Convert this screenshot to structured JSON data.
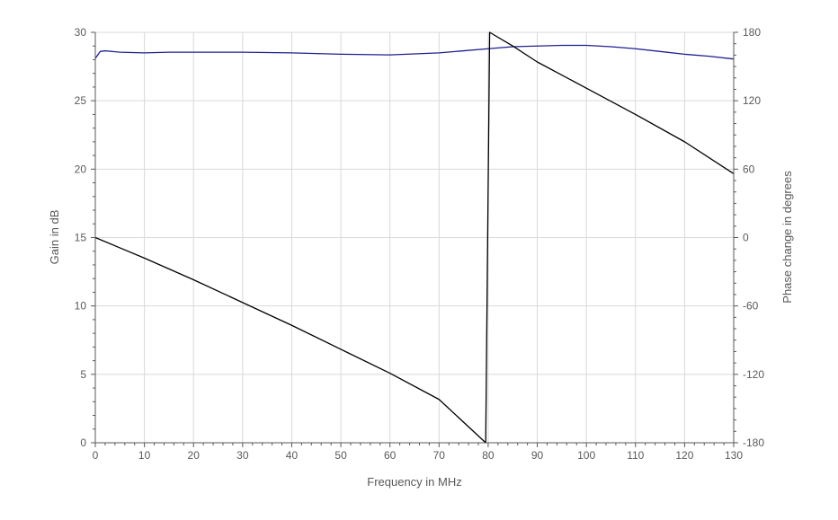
{
  "chart_data": {
    "type": "line",
    "title": "",
    "xlabel": "Frequency in MHz",
    "ylabel": "Gain in dB",
    "y2label": "Phase change in degrees",
    "xlim": [
      0,
      130
    ],
    "ylim": [
      0,
      30
    ],
    "y2lim": [
      -180,
      180
    ],
    "xticks": [
      0,
      10,
      20,
      30,
      40,
      50,
      60,
      70,
      80,
      90,
      100,
      110,
      120,
      130
    ],
    "yticks": [
      0,
      5,
      10,
      15,
      20,
      25,
      30
    ],
    "y2ticks": [
      -180,
      -120,
      -60,
      0,
      60,
      120,
      180
    ],
    "grid": true,
    "legend": "none",
    "colors": {
      "gain": "#1f1f8f",
      "phase": "#000000",
      "grid": "#d9d9d9",
      "axis": "#595959"
    },
    "series": [
      {
        "axis": "left",
        "color": "#1f1f8f",
        "x": [
          0,
          1,
          2,
          5,
          10,
          15,
          20,
          30,
          40,
          50,
          60,
          70,
          75,
          80,
          85,
          90,
          95,
          100,
          105,
          110,
          115,
          120,
          125,
          130
        ],
        "values": [
          28.1,
          28.6,
          28.65,
          28.55,
          28.5,
          28.55,
          28.55,
          28.55,
          28.5,
          28.4,
          28.35,
          28.5,
          28.65,
          28.8,
          28.95,
          29.0,
          29.05,
          29.05,
          28.95,
          28.8,
          28.6,
          28.4,
          28.25,
          28.05
        ]
      },
      {
        "axis": "right",
        "color": "#000000",
        "x": [
          0,
          5,
          10,
          20,
          30,
          40,
          50,
          60,
          70,
          79.5,
          80.3,
          85,
          90,
          100,
          110,
          120,
          130
        ],
        "values": [
          0,
          -9,
          -18,
          -37,
          -57,
          -77,
          -98,
          -119,
          -142,
          -180,
          180,
          168,
          154,
          131,
          108,
          84,
          56
        ]
      }
    ]
  }
}
